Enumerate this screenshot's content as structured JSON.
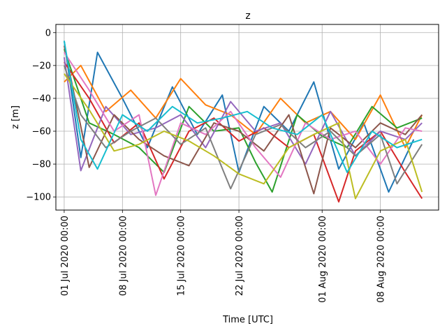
{
  "chart_data": {
    "type": "line",
    "title": "z",
    "xlabel": "Time  [UTC]",
    "ylabel": "z  [m]",
    "x_axis_type": "date",
    "xlim": [
      "2020-06-30",
      "2020-08-15"
    ],
    "ylim": [
      -108,
      5
    ],
    "grid": true,
    "legend": "none",
    "x_ticks": [
      {
        "date": "2020-07-01",
        "label": "01 Jul 2020 00:00"
      },
      {
        "date": "2020-07-08",
        "label": "08 Jul 2020 00:00"
      },
      {
        "date": "2020-07-15",
        "label": "15 Jul 2020 00:00"
      },
      {
        "date": "2020-07-22",
        "label": "22 Jul 2020 00:00"
      },
      {
        "date": "2020-08-01",
        "label": "01 Aug 2020 00:00"
      },
      {
        "date": "2020-08-08",
        "label": "08 Aug 2020 00:00"
      }
    ],
    "y_ticks": [
      {
        "value": 0,
        "label": "0"
      },
      {
        "value": -20,
        "label": "−20"
      },
      {
        "value": -40,
        "label": "−40"
      },
      {
        "value": -60,
        "label": "−60"
      },
      {
        "value": -80,
        "label": "−80"
      },
      {
        "value": -100,
        "label": "−100"
      }
    ],
    "series_colors": [
      "#1f77b4",
      "#ff7f0e",
      "#2ca02c",
      "#d62728",
      "#9467bd",
      "#8c564b",
      "#e377c2",
      "#7f7f7f",
      "#bcbd22",
      "#17becf"
    ],
    "series": [
      {
        "color": "#1f77b4",
        "x": [
          "2020-07-01",
          "2020-07-03",
          "2020-07-05",
          "2020-07-08",
          "2020-07-11",
          "2020-07-14",
          "2020-07-17",
          "2020-07-20",
          "2020-07-22",
          "2020-07-25",
          "2020-07-28",
          "2020-07-31",
          "2020-08-03",
          "2020-08-06",
          "2020-08-09",
          "2020-08-12"
        ],
        "y": [
          -5,
          -76,
          -12,
          -40,
          -70,
          -33,
          -62,
          -38,
          -85,
          -45,
          -60,
          -30,
          -83,
          -55,
          -97,
          -65
        ]
      },
      {
        "color": "#ff7f0e",
        "x": [
          "2020-07-01",
          "2020-07-03",
          "2020-07-06",
          "2020-07-09",
          "2020-07-12",
          "2020-07-15",
          "2020-07-18",
          "2020-07-21",
          "2020-07-24",
          "2020-07-27",
          "2020-07-30",
          "2020-08-02",
          "2020-08-05",
          "2020-08-08",
          "2020-08-11",
          "2020-08-13"
        ],
        "y": [
          -30,
          -20,
          -48,
          -35,
          -52,
          -28,
          -44,
          -50,
          -62,
          -40,
          -55,
          -48,
          -65,
          -38,
          -70,
          -50
        ]
      },
      {
        "color": "#2ca02c",
        "x": [
          "2020-07-01",
          "2020-07-04",
          "2020-07-07",
          "2020-07-10",
          "2020-07-13",
          "2020-07-16",
          "2020-07-19",
          "2020-07-22",
          "2020-07-24",
          "2020-07-26",
          "2020-07-29",
          "2020-08-01",
          "2020-08-04",
          "2020-08-07",
          "2020-08-10",
          "2020-08-13"
        ],
        "y": [
          -10,
          -55,
          -62,
          -70,
          -85,
          -45,
          -60,
          -58,
          -79,
          -97,
          -50,
          -63,
          -70,
          -45,
          -58,
          -52
        ]
      },
      {
        "color": "#d62728",
        "x": [
          "2020-07-01",
          "2020-07-04",
          "2020-07-07",
          "2020-07-10",
          "2020-07-13",
          "2020-07-16",
          "2020-07-19",
          "2020-07-22",
          "2020-07-25",
          "2020-07-28",
          "2020-07-31",
          "2020-08-03",
          "2020-08-05",
          "2020-08-08",
          "2020-08-11",
          "2020-08-13"
        ],
        "y": [
          -18,
          -40,
          -67,
          -55,
          -89,
          -60,
          -52,
          -66,
          -58,
          -70,
          -62,
          -103,
          -72,
          -60,
          -85,
          -101
        ]
      },
      {
        "color": "#9467bd",
        "x": [
          "2020-07-01",
          "2020-07-03",
          "2020-07-06",
          "2020-07-09",
          "2020-07-12",
          "2020-07-15",
          "2020-07-18",
          "2020-07-21",
          "2020-07-24",
          "2020-07-27",
          "2020-07-30",
          "2020-08-02",
          "2020-08-05",
          "2020-08-08",
          "2020-08-11",
          "2020-08-13"
        ],
        "y": [
          -15,
          -84,
          -45,
          -62,
          -58,
          -50,
          -70,
          -42,
          -60,
          -55,
          -80,
          -48,
          -75,
          -60,
          -65,
          -55
        ]
      },
      {
        "color": "#8c564b",
        "x": [
          "2020-07-01",
          "2020-07-04",
          "2020-07-07",
          "2020-07-10",
          "2020-07-13",
          "2020-07-16",
          "2020-07-19",
          "2020-07-22",
          "2020-07-25",
          "2020-07-28",
          "2020-07-31",
          "2020-08-02",
          "2020-08-05",
          "2020-08-08",
          "2020-08-11",
          "2020-08-13"
        ],
        "y": [
          -8,
          -82,
          -50,
          -65,
          -75,
          -81,
          -55,
          -60,
          -72,
          -50,
          -98,
          -58,
          -70,
          -55,
          -62,
          -50
        ]
      },
      {
        "color": "#e377c2",
        "x": [
          "2020-07-01",
          "2020-07-04",
          "2020-07-07",
          "2020-07-10",
          "2020-07-12",
          "2020-07-15",
          "2020-07-18",
          "2020-07-21",
          "2020-07-24",
          "2020-07-27",
          "2020-07-30",
          "2020-08-02",
          "2020-08-05",
          "2020-08-08",
          "2020-08-11",
          "2020-08-13"
        ],
        "y": [
          -12,
          -35,
          -60,
          -50,
          -99,
          -55,
          -62,
          -48,
          -70,
          -88,
          -55,
          -65,
          -60,
          -80,
          -58,
          -60
        ]
      },
      {
        "color": "#7f7f7f",
        "x": [
          "2020-07-01",
          "2020-07-03",
          "2020-07-06",
          "2020-07-09",
          "2020-07-12",
          "2020-07-15",
          "2020-07-18",
          "2020-07-21",
          "2020-07-24",
          "2020-07-27",
          "2020-07-30",
          "2020-08-02",
          "2020-08-05",
          "2020-08-08",
          "2020-08-10",
          "2020-08-13"
        ],
        "y": [
          -20,
          -50,
          -70,
          -60,
          -52,
          -68,
          -58,
          -95,
          -62,
          -56,
          -70,
          -60,
          -75,
          -62,
          -92,
          -68
        ]
      },
      {
        "color": "#bcbd22",
        "x": [
          "2020-07-01",
          "2020-07-04",
          "2020-07-07",
          "2020-07-10",
          "2020-07-13",
          "2020-07-16",
          "2020-07-19",
          "2020-07-22",
          "2020-07-25",
          "2020-07-28",
          "2020-07-31",
          "2020-08-03",
          "2020-08-05",
          "2020-08-08",
          "2020-08-11",
          "2020-08-13"
        ],
        "y": [
          -25,
          -47,
          -72,
          -68,
          -60,
          -66,
          -75,
          -86,
          -92,
          -70,
          -62,
          -55,
          -101,
          -72,
          -65,
          -97
        ]
      },
      {
        "color": "#17becf",
        "x": [
          "2020-07-01",
          "2020-07-03",
          "2020-07-05",
          "2020-07-08",
          "2020-07-11",
          "2020-07-14",
          "2020-07-17",
          "2020-07-20",
          "2020-07-23",
          "2020-07-26",
          "2020-07-29",
          "2020-08-01",
          "2020-08-04",
          "2020-08-07",
          "2020-08-10",
          "2020-08-13"
        ],
        "y": [
          -5,
          -65,
          -83,
          -50,
          -60,
          -45,
          -55,
          -52,
          -48,
          -58,
          -62,
          -50,
          -85,
          -60,
          -70,
          -65
        ]
      }
    ]
  }
}
